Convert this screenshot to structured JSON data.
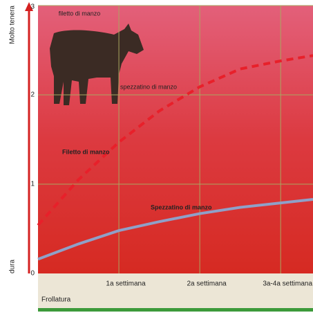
{
  "chart_data": {
    "type": "line",
    "y_label_top": "Molto tenera",
    "y_label_bottom": "dura",
    "x_label": "Frollatura",
    "annotations": [
      "filetto di manzo",
      "spezzatino di manzo"
    ],
    "x": [
      0,
      0.5,
      1,
      1.5,
      2,
      2.5,
      3,
      3.4
    ],
    "series": [
      {
        "name": "Filetto di manzo",
        "color": "#e8202a",
        "dashed": true,
        "values": [
          0.54,
          1.05,
          1.47,
          1.82,
          2.09,
          2.29,
          2.38,
          2.44
        ]
      },
      {
        "name": "Spezzatino di manzo",
        "color": "#8fa0c8",
        "dashed": false,
        "values": [
          0.16,
          0.33,
          0.48,
          0.58,
          0.67,
          0.74,
          0.79,
          0.83
        ]
      }
    ],
    "xlim": [
      0,
      3.4
    ],
    "xticks": [
      {
        "value": 1,
        "label": "1a settimana"
      },
      {
        "value": 2,
        "label": "2a settimana"
      },
      {
        "value": 3,
        "label": "3a-4a settimana"
      }
    ],
    "ylim": [
      0,
      3
    ],
    "yticks": [
      0,
      1,
      2,
      3
    ],
    "grid": true
  }
}
